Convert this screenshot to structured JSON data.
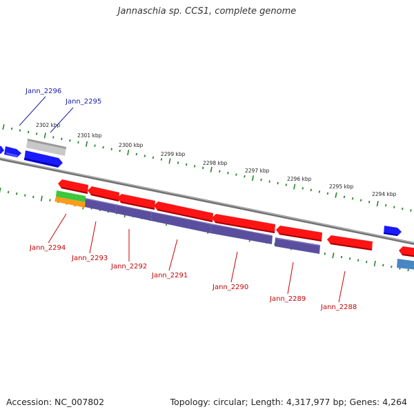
{
  "title": "Jannaschia sp. CCS1, complete genome",
  "footer": {
    "accession": "Accession: NC_007802",
    "summary": "Topology: circular; Length: 4,317,977 bp; Genes: 4,264"
  },
  "colors": {
    "backbone": "#808080",
    "tick": "#1f8a1f",
    "forward_cds": "#1a1aff",
    "forward_gene": "#c8c8c8",
    "reverse_cds": "#ff1414",
    "reverse_gene": "#5a4f9e",
    "trna": "#3cc83c",
    "other": "#ff9a1a",
    "misc": "#4a86c4",
    "forward_label": "#1a1ab0",
    "reverse_label": "#c80000"
  },
  "scale_labels": [
    "2302 kbp",
    "2301 kbp",
    "2300 kbp",
    "2299 kbp",
    "2298 kbp",
    "2297 kbp",
    "2296 kbp",
    "2295 kbp",
    "2294 kbp"
  ],
  "forward_labels": [
    "Jann_2296",
    "Jann_2295"
  ],
  "reverse_labels": [
    "Jann_2294",
    "Jann_2293",
    "Jann_2292",
    "Jann_2291",
    "Jann_2290",
    "Jann_2289",
    "Jann_2288"
  ]
}
